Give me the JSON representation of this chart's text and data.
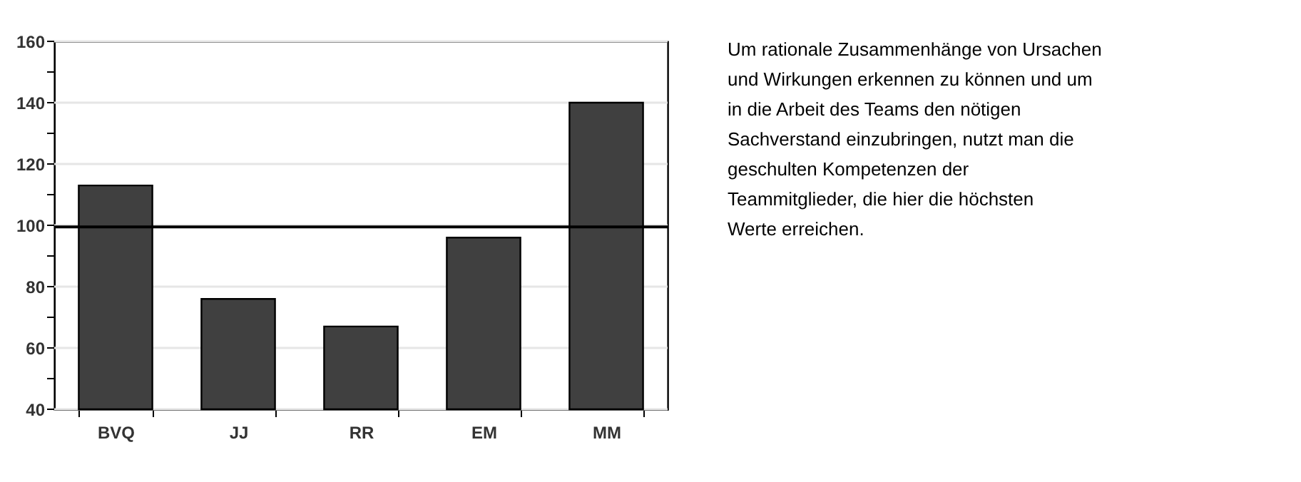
{
  "chart_data": {
    "type": "bar",
    "categories": [
      "BVQ",
      "JJ",
      "RR",
      "EM",
      "MM"
    ],
    "series": [
      {
        "color": "#404040",
        "values": [
          113,
          76,
          67,
          96,
          140
        ]
      }
    ],
    "ylim": [
      40,
      160
    ],
    "yticks": [
      40,
      {
        "value": 50,
        "label": null
      },
      60,
      {
        "value": 70,
        "label": null
      },
      80,
      {
        "value": 90,
        "label": null
      },
      100,
      {
        "value": 110,
        "label": null
      },
      120,
      {
        "value": 130,
        "label": null
      },
      140,
      {
        "value": 150,
        "label": null
      },
      160
    ],
    "grid": "y",
    "ref_lines": [
      {
        "axis": "y",
        "value": 99.5,
        "color": "#000000",
        "line_style": "solid"
      }
    ],
    "annotations": [
      "Um rationale Zusammenhänge von Ursachen und Wirkungen erkennen zu können und um in die Arbeit des Teams den nötigen Sachverstand einzubringen, nutzt man die geschulten Kompetenzen der Teammitglieder, die hier die höchsten Werte erreichen."
    ]
  }
}
